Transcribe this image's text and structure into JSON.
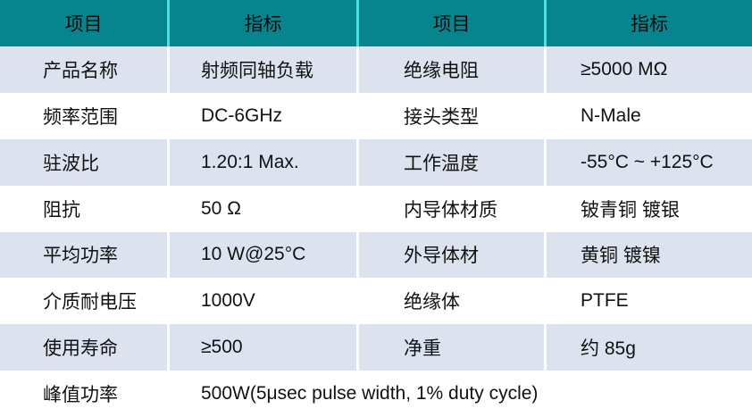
{
  "table": {
    "title": "RF coaxial load specification table",
    "colors": {
      "header_bg": "#07858E",
      "header_divider": "#3FE3EA",
      "row_alt_bg": "#DCE3EF",
      "row_bg": "#FFFFFF",
      "text": "#111111"
    },
    "header": [
      "项目",
      "指标",
      "项目",
      "指标"
    ],
    "rows": [
      {
        "c1": "产品名称",
        "c2": "射频同轴负载",
        "c3": "绝缘电阻",
        "c4": "≥5000 MΩ"
      },
      {
        "c1": "频率范围",
        "c2": "DC-6GHz",
        "c3": "接头类型",
        "c4": "N-Male"
      },
      {
        "c1": "驻波比",
        "c2": "1.20:1 Max.",
        "c3": "工作温度",
        "c4": "-55°C ~ +125°C"
      },
      {
        "c1": "阻抗",
        "c2": "50 Ω",
        "c3": "内导体材质",
        "c4": "铍青铜 镀银"
      },
      {
        "c1": "平均功率",
        "c2": "10 W@25°C",
        "c3": "外导体材",
        "c4": "黄铜 镀镍"
      },
      {
        "c1": "介质耐电压",
        "c2": "1000V",
        "c3": "绝缘体",
        "c4": "PTFE"
      },
      {
        "c1": "使用寿命",
        "c2": "≥500",
        "c3": "净重",
        "c4": "约 85g"
      },
      {
        "c1": "峰值功率",
        "c2": "500W(5μsec pulse width, 1% duty cycle)"
      }
    ]
  }
}
